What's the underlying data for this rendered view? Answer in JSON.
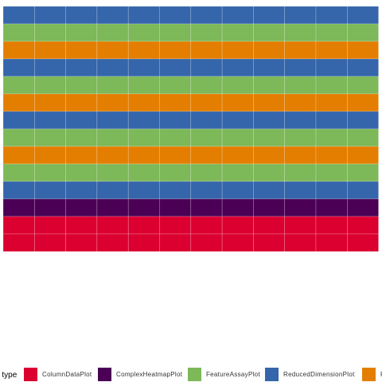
{
  "chart_data": {
    "type": "waffle",
    "grid": {
      "columns": 12,
      "unit_label": ""
    },
    "fill_order": "row-major",
    "segments": [
      {
        "panel": "ReducedDimensionPlot",
        "units": 12
      },
      {
        "panel": "FeatureAssayPlot",
        "units": 12
      },
      {
        "panel": "RowDataPlot",
        "units": 12
      },
      {
        "panel": "ReducedDimensionPlot",
        "units": 12
      },
      {
        "panel": "FeatureAssayPlot",
        "units": 12
      },
      {
        "panel": "RowDataPlot",
        "units": 12
      },
      {
        "panel": "ReducedDimensionPlot",
        "units": 12
      },
      {
        "panel": "FeatureAssayPlot",
        "units": 12
      },
      {
        "panel": "RowDataPlot",
        "units": 12
      },
      {
        "panel": "FeatureAssayPlot",
        "units": 12
      },
      {
        "panel": "ReducedDimensionPlot",
        "units": 12
      },
      {
        "panel": "ComplexHeatmapPlot",
        "units": 12
      },
      {
        "panel": "ColumnDataPlot",
        "units": 24
      }
    ],
    "legend": {
      "title": "Panel type",
      "position": "bottom",
      "entries": [
        {
          "label": "ColumnDataPlot",
          "color": "#DC0030"
        },
        {
          "label": "ComplexHeatmapPlot",
          "color": "#4B0055"
        },
        {
          "label": "FeatureAssayPlot",
          "color": "#7DB859"
        },
        {
          "label": "ReducedDimensionPlot",
          "color": "#3565AA"
        },
        {
          "label": "RowDataPlot",
          "color": "#E47E00"
        }
      ]
    }
  }
}
